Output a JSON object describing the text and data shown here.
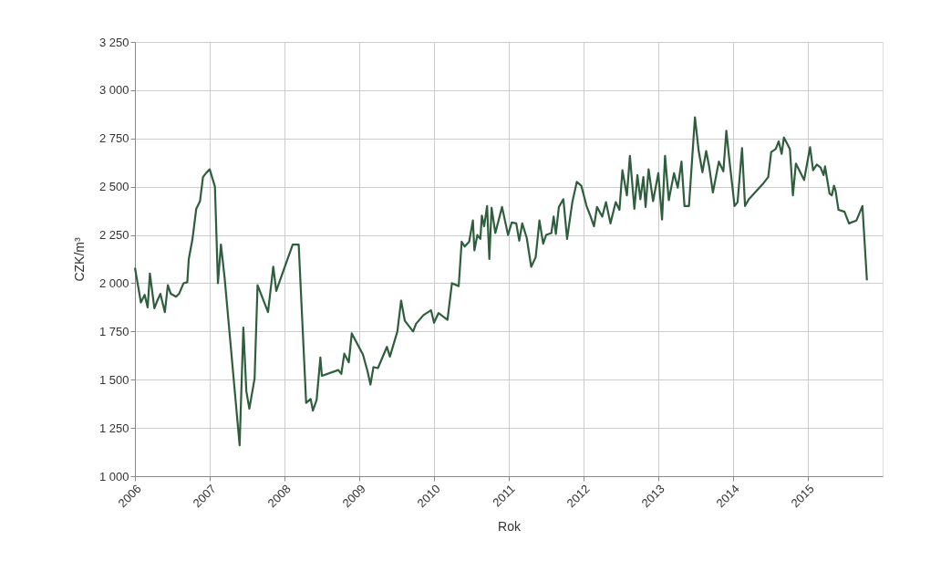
{
  "chart_data": {
    "type": "line",
    "xlabel": "Rok",
    "ylabel": "CZK/m³",
    "xlim": [
      2006,
      2016
    ],
    "xticks": [
      2006,
      2007,
      2008,
      2009,
      2010,
      2011,
      2012,
      2013,
      2014,
      2015
    ],
    "ylim": [
      1000,
      3250
    ],
    "yticks": [
      {
        "value": 1000,
        "label": "1 000"
      },
      {
        "value": 1250,
        "label": "1 250"
      },
      {
        "value": 1500,
        "label": "1 500"
      },
      {
        "value": 1750,
        "label": "1 750"
      },
      {
        "value": 2000,
        "label": "2 000"
      },
      {
        "value": 2250,
        "label": "2 250"
      },
      {
        "value": 2500,
        "label": "2 500"
      },
      {
        "value": 2750,
        "label": "2 750"
      },
      {
        "value": 3000,
        "label": "3 000"
      },
      {
        "value": 3250,
        "label": "3 250"
      }
    ],
    "grid": true,
    "marker": "none",
    "line_style": "solid",
    "series": [
      {
        "color": "#2e5e3e",
        "x": [
          2006.0,
          2006.08,
          2006.13,
          2006.17,
          2006.2,
          2006.26,
          2006.3,
          2006.34,
          2006.4,
          2006.44,
          2006.48,
          2006.55,
          2006.59,
          2006.65,
          2006.7,
          2006.72,
          2006.77,
          2006.82,
          2006.87,
          2006.91,
          2006.95,
          2007.0,
          2007.07,
          2007.11,
          2007.15,
          2007.2,
          2007.4,
          2007.45,
          2007.49,
          2007.53,
          2007.6,
          2007.64,
          2007.78,
          2007.85,
          2007.89,
          2008.11,
          2008.19,
          2008.29,
          2008.35,
          2008.38,
          2008.43,
          2008.48,
          2008.5,
          2008.72,
          2008.76,
          2008.8,
          2008.86,
          2008.9,
          2009.05,
          2009.11,
          2009.15,
          2009.19,
          2009.25,
          2009.37,
          2009.41,
          2009.51,
          2009.56,
          2009.61,
          2009.72,
          2009.76,
          2009.86,
          2009.96,
          2010.0,
          2010.06,
          2010.18,
          2010.24,
          2010.33,
          2010.37,
          2010.41,
          2010.47,
          2010.52,
          2010.54,
          2010.58,
          2010.62,
          2010.64,
          2010.67,
          2010.71,
          2010.74,
          2010.77,
          2010.82,
          2010.91,
          2010.99,
          2011.04,
          2011.1,
          2011.14,
          2011.18,
          2011.24,
          2011.3,
          2011.36,
          2011.41,
          2011.46,
          2011.5,
          2011.57,
          2011.6,
          2011.63,
          2011.67,
          2011.73,
          2011.78,
          2011.85,
          2011.91,
          2011.97,
          2012.04,
          2012.09,
          2012.14,
          2012.18,
          2012.25,
          2012.3,
          2012.36,
          2012.43,
          2012.48,
          2012.52,
          2012.58,
          2012.62,
          2012.68,
          2012.72,
          2012.76,
          2012.8,
          2012.83,
          2012.87,
          2012.93,
          2013.0,
          2013.05,
          2013.09,
          2013.14,
          2013.21,
          2013.26,
          2013.31,
          2013.35,
          2013.41,
          2013.49,
          2013.54,
          2013.59,
          2013.64,
          2013.68,
          2013.73,
          2013.81,
          2013.87,
          2013.91,
          2013.95,
          2014.02,
          2014.06,
          2014.12,
          2014.16,
          2014.21,
          2014.41,
          2014.47,
          2014.51,
          2014.57,
          2014.61,
          2014.65,
          2014.68,
          2014.72,
          2014.76,
          2014.8,
          2014.84,
          2014.95,
          2015.03,
          2015.07,
          2015.12,
          2015.17,
          2015.21,
          2015.23,
          2015.29,
          2015.32,
          2015.35,
          2015.37,
          2015.41,
          2015.49,
          2015.55,
          2015.65,
          2015.73,
          2015.79
        ],
        "values": [
          2080,
          1900,
          1940,
          1875,
          2050,
          1870,
          1910,
          1945,
          1850,
          1990,
          1945,
          1930,
          1945,
          2000,
          2005,
          2125,
          2230,
          2385,
          2425,
          2550,
          2570,
          2590,
          2500,
          2000,
          2200,
          2025,
          1160,
          1770,
          1440,
          1350,
          1505,
          1990,
          1850,
          2085,
          1960,
          2200,
          2200,
          1380,
          1400,
          1340,
          1395,
          1615,
          1520,
          1550,
          1530,
          1635,
          1590,
          1740,
          1630,
          1545,
          1475,
          1565,
          1560,
          1670,
          1620,
          1750,
          1910,
          1805,
          1750,
          1790,
          1835,
          1860,
          1795,
          1845,
          1810,
          2000,
          1985,
          2215,
          2190,
          2215,
          2325,
          2170,
          2250,
          2230,
          2350,
          2295,
          2400,
          2125,
          2390,
          2260,
          2395,
          2250,
          2315,
          2310,
          2220,
          2310,
          2235,
          2085,
          2135,
          2325,
          2205,
          2250,
          2260,
          2345,
          2255,
          2395,
          2435,
          2230,
          2420,
          2525,
          2505,
          2400,
          2350,
          2295,
          2395,
          2345,
          2420,
          2310,
          2420,
          2380,
          2585,
          2455,
          2660,
          2385,
          2560,
          2435,
          2550,
          2395,
          2590,
          2425,
          2570,
          2330,
          2660,
          2430,
          2570,
          2495,
          2630,
          2400,
          2400,
          2860,
          2685,
          2575,
          2685,
          2605,
          2470,
          2630,
          2580,
          2790,
          2640,
          2400,
          2420,
          2700,
          2400,
          2435,
          2520,
          2550,
          2680,
          2695,
          2735,
          2670,
          2755,
          2725,
          2695,
          2455,
          2620,
          2535,
          2705,
          2585,
          2615,
          2600,
          2560,
          2605,
          2465,
          2455,
          2505,
          2480,
          2380,
          2370,
          2310,
          2325,
          2400,
          2015
        ]
      }
    ]
  }
}
